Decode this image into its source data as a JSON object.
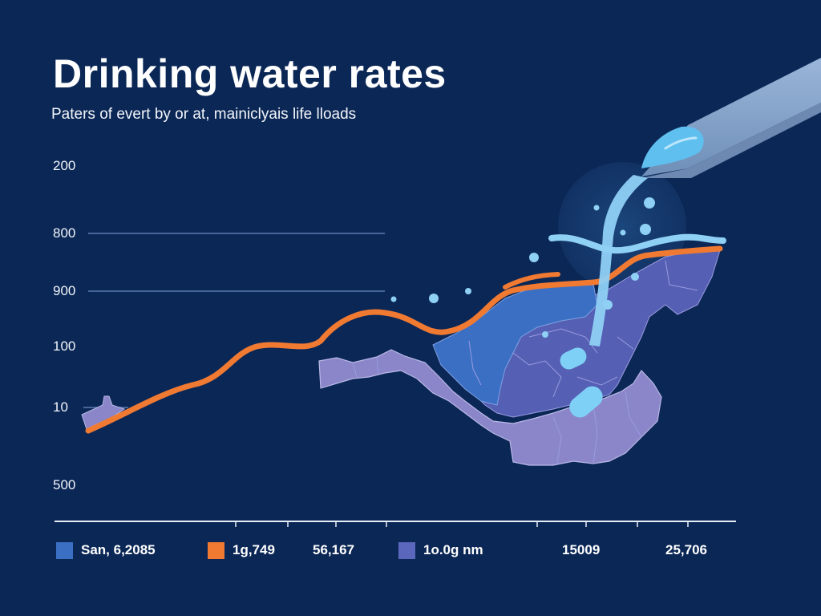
{
  "header": {
    "title": "Drinking water rates",
    "subtitle": "Paters of evert by or at, mainiclyais life lloads"
  },
  "chart_data": {
    "type": "line",
    "title": "Drinking water rates",
    "subtitle": "Paters of evert by or at, mainiclyais life lloads",
    "xlabel": "",
    "ylabel": "",
    "y_tick_labels": [
      "200",
      "800",
      "900",
      "100",
      "10",
      "500"
    ],
    "gridlines_at_labels": [
      "800",
      "900",
      "10"
    ],
    "grid": true,
    "x_tick_count": 8,
    "series": [
      {
        "name": "1g,749",
        "color": "#f07a32",
        "style": "line",
        "description": "rising wavy rate line from lower-left to upper-right",
        "relative_y": [
          0.08,
          0.16,
          0.22,
          0.33,
          0.42,
          0.48,
          0.55,
          0.6,
          0.58,
          0.66,
          0.74,
          0.8,
          0.86,
          0.92
        ]
      },
      {
        "name": "San, 6,2085",
        "color": "#3a6fc4",
        "style": "region"
      },
      {
        "name": "1o.0g nm",
        "color": "#7b7fc9",
        "style": "region"
      }
    ],
    "legend": [
      {
        "label": "San, 6,2085",
        "color": "#3a6fc4"
      },
      {
        "label": "1g,749",
        "color": "#f07a32"
      },
      {
        "label": "56,167",
        "color": null
      },
      {
        "label": "1o.0g nm",
        "color": "#5b66bd"
      },
      {
        "label": "15009",
        "color": null
      },
      {
        "label": "25,706",
        "color": null
      }
    ],
    "legend_position": "bottom"
  },
  "colors": {
    "background": "#0b2756",
    "rate_line": "#f07a32",
    "water": "#8fd0f5",
    "water_dark": "#5fb8ee",
    "region_blue": "#3a6fc4",
    "region_mid": "#5560b4",
    "region_light": "#8a86c9",
    "pipe": "#8eaad0",
    "grid": "#5a7bb0"
  }
}
